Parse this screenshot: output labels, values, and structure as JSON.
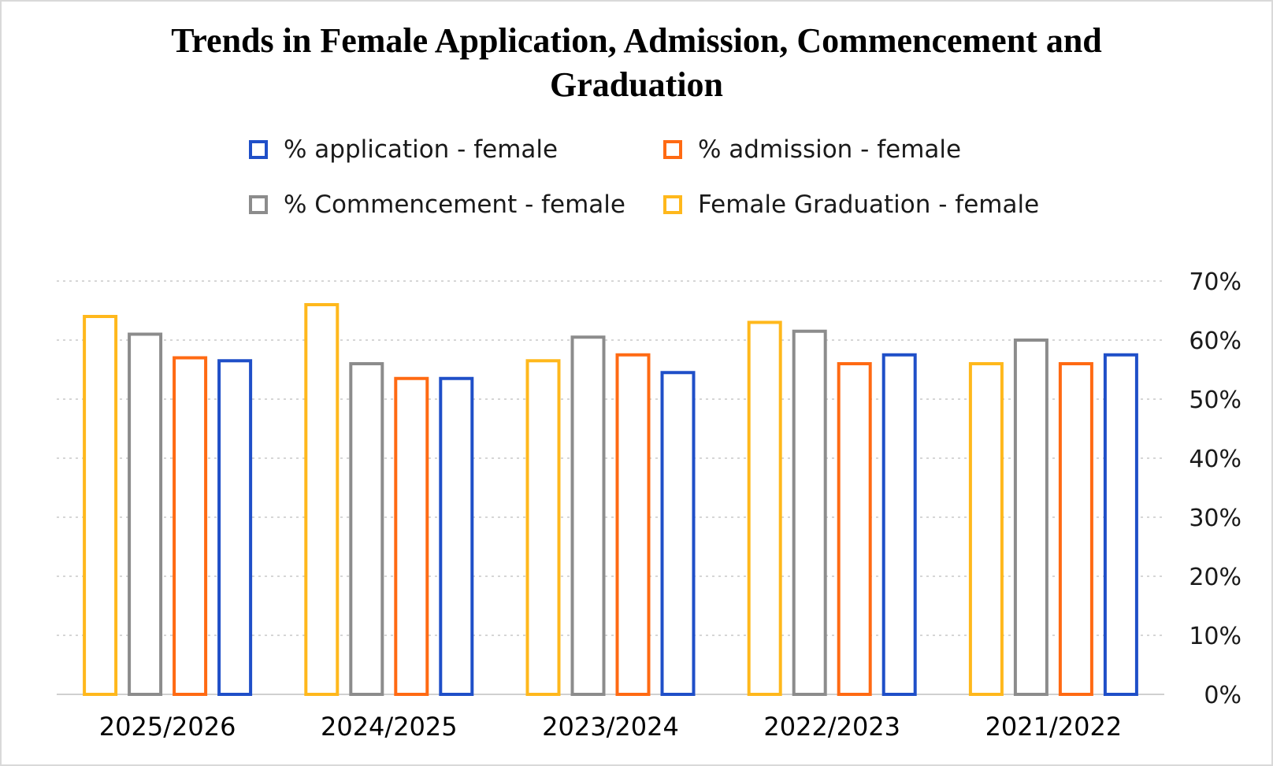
{
  "chart_data": {
    "type": "bar",
    "title": "Trends in Female Application, Admission, Commencement and Graduation",
    "title_lines": [
      "Trends in Female Application, Admission, Commencement and",
      "Graduation"
    ],
    "categories": [
      "2025/2026",
      "2024/2025",
      "2023/2024",
      "2022/2023",
      "2021/2022"
    ],
    "series": [
      {
        "name": "Female Graduation - female",
        "color": "#FFB81C",
        "values": [
          64,
          66,
          56.5,
          63,
          56
        ]
      },
      {
        "name": "% Commencement - female",
        "color": "#8C8C8C",
        "values": [
          61,
          56,
          60.5,
          61.5,
          60
        ]
      },
      {
        "name": "% admission - female",
        "color": "#FF6A13",
        "values": [
          57,
          53.5,
          57.5,
          56,
          56
        ]
      },
      {
        "name": "% application - female",
        "color": "#1F4FC8",
        "values": [
          56.5,
          53.5,
          54.5,
          57.5,
          57.5
        ]
      }
    ],
    "legend": [
      {
        "label": "% application - female",
        "color": "#1F4FC8"
      },
      {
        "label": "% admission - female",
        "color": "#FF6A13"
      },
      {
        "label": "% Commencement - female",
        "color": "#8C8C8C"
      },
      {
        "label": "Female Graduation - female",
        "color": "#FFB81C"
      }
    ],
    "legend_position": "top",
    "y_axis_position": "right",
    "ylim": [
      0,
      70
    ],
    "yticks": [
      0,
      10,
      20,
      30,
      40,
      50,
      60,
      70
    ],
    "ytick_labels": [
      "0%",
      "10%",
      "20%",
      "30%",
      "40%",
      "50%",
      "60%",
      "70%"
    ],
    "grid": true,
    "bar_style": "outline"
  }
}
